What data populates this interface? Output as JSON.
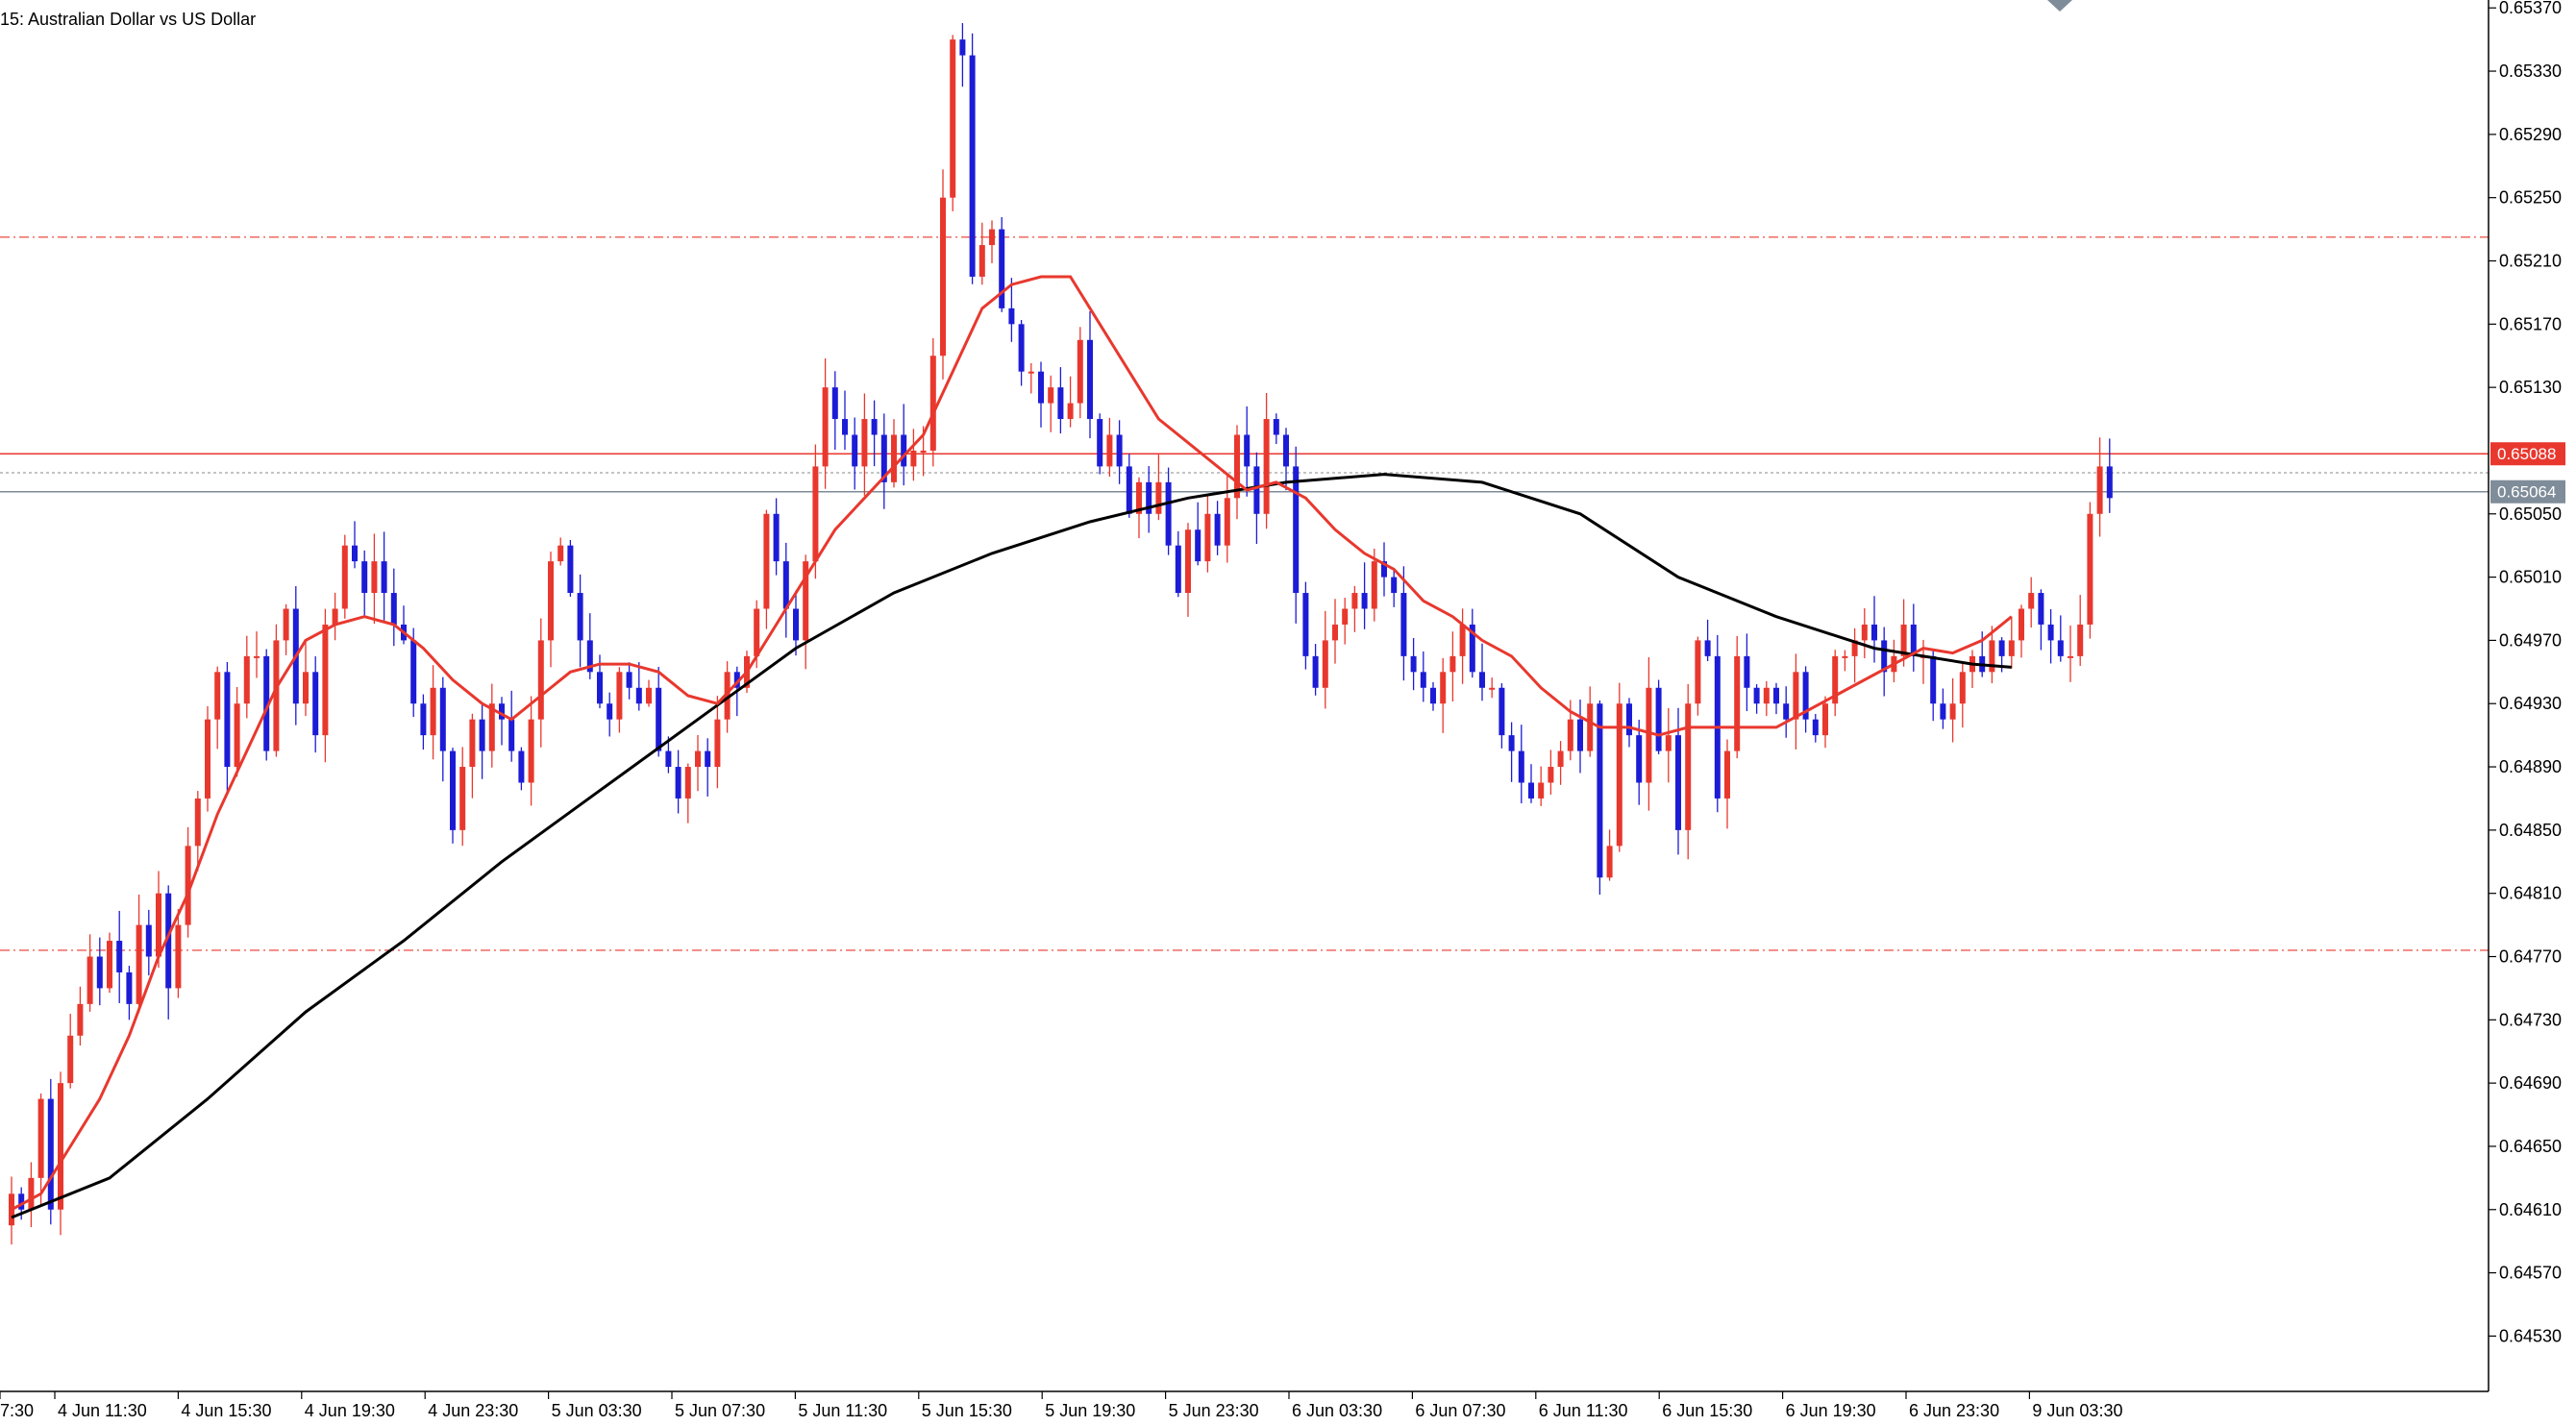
{
  "chart_data": {
    "type": "candlestick",
    "title": "15:  Australian Dollar vs US Dollar",
    "ylim": [
      0.64495,
      0.65375
    ],
    "y_ticks": [
      "0.65370",
      "0.65330",
      "0.65290",
      "0.65250",
      "0.65210",
      "0.65170",
      "0.65130",
      "0.65050",
      "0.65010",
      "0.64970",
      "0.64930",
      "0.64890",
      "0.64850",
      "0.64810",
      "0.64770",
      "0.64730",
      "0.64690",
      "0.64650",
      "0.64610",
      "0.64570",
      "0.64530"
    ],
    "x_ticks": [
      "7:30",
      "4 Jun 11:30",
      "4 Jun 15:30",
      "4 Jun 19:30",
      "4 Jun 23:30",
      "5 Jun 03:30",
      "5 Jun 07:30",
      "5 Jun 11:30",
      "5 Jun 15:30",
      "5 Jun 19:30",
      "5 Jun 23:30",
      "6 Jun 03:30",
      "6 Jun 07:30",
      "6 Jun 11:30",
      "6 Jun 15:30",
      "6 Jun 19:30",
      "6 Jun 23:30",
      "9 Jun 03:30"
    ],
    "ask_line": {
      "label": "0.65088",
      "value": 0.65088
    },
    "bid_line": {
      "label": "0.65064",
      "value": 0.65064
    },
    "mid_line": 0.65076,
    "levels": [
      0.65225,
      0.64774
    ],
    "closes": [
      0.6462,
      0.6461,
      0.6463,
      0.6468,
      0.6461,
      0.6469,
      0.6472,
      0.6474,
      0.6477,
      0.6475,
      0.6478,
      0.6476,
      0.6474,
      0.6479,
      0.6477,
      0.6481,
      0.6475,
      0.6479,
      0.6484,
      0.6487,
      0.6492,
      0.6495,
      0.6489,
      0.6493,
      0.6496,
      0.6496,
      0.649,
      0.6497,
      0.6499,
      0.6493,
      0.6495,
      0.6491,
      0.6498,
      0.6499,
      0.6503,
      0.6502,
      0.65,
      0.6502,
      0.65,
      0.6498,
      0.6497,
      0.6493,
      0.6491,
      0.6494,
      0.649,
      0.6485,
      0.6489,
      0.6492,
      0.649,
      0.6493,
      0.6492,
      0.649,
      0.6488,
      0.6492,
      0.6497,
      0.6502,
      0.6503,
      0.65,
      0.6497,
      0.6495,
      0.6493,
      0.6492,
      0.6495,
      0.6494,
      0.6493,
      0.6494,
      0.649,
      0.6489,
      0.6487,
      0.6489,
      0.649,
      0.6489,
      0.6492,
      0.6495,
      0.6494,
      0.6496,
      0.6499,
      0.6505,
      0.6502,
      0.6499,
      0.6497,
      0.6502,
      0.6508,
      0.6513,
      0.6511,
      0.651,
      0.6508,
      0.6511,
      0.651,
      0.6507,
      0.651,
      0.6508,
      0.6509,
      0.6509,
      0.6515,
      0.6525,
      0.6535,
      0.6534,
      0.652,
      0.6522,
      0.6523,
      0.6518,
      0.6517,
      0.6514,
      0.6514,
      0.6512,
      0.6513,
      0.6511,
      0.6512,
      0.6516,
      0.6511,
      0.6508,
      0.651,
      0.6508,
      0.6505,
      0.6507,
      0.6505,
      0.6507,
      0.6503,
      0.65,
      0.6504,
      0.6502,
      0.6505,
      0.6503,
      0.6506,
      0.651,
      0.6508,
      0.6505,
      0.6511,
      0.651,
      0.6508,
      0.65,
      0.6496,
      0.6494,
      0.6497,
      0.6498,
      0.6499,
      0.65,
      0.6499,
      0.6502,
      0.6501,
      0.65,
      0.6496,
      0.6495,
      0.6494,
      0.6493,
      0.6495,
      0.6496,
      0.6498,
      0.6495,
      0.6494,
      0.6494,
      0.6491,
      0.649,
      0.6488,
      0.6487,
      0.6488,
      0.6489,
      0.649,
      0.6492,
      0.649,
      0.6493,
      0.6482,
      0.6484,
      0.6493,
      0.6491,
      0.6488,
      0.6494,
      0.649,
      0.6491,
      0.6485,
      0.6493,
      0.6497,
      0.6496,
      0.6487,
      0.649,
      0.6496,
      0.6494,
      0.6493,
      0.6494,
      0.6493,
      0.6492,
      0.6495,
      0.6492,
      0.6491,
      0.6493,
      0.6496,
      0.6496,
      0.6497,
      0.6498,
      0.6497,
      0.6495,
      0.6496,
      0.6498,
      0.6496,
      0.6496,
      0.6493,
      0.6492,
      0.6493,
      0.6495,
      0.6496,
      0.6495,
      0.6497,
      0.6496,
      0.6497,
      0.6499,
      0.65,
      0.6498,
      0.6497,
      0.6496,
      0.6496,
      0.6498,
      0.6505,
      0.6508,
      0.6506
    ],
    "ma_fast": [
      [
        0,
        0.6461
      ],
      [
        3,
        0.6462
      ],
      [
        6,
        0.6465
      ],
      [
        9,
        0.6468
      ],
      [
        12,
        0.6472
      ],
      [
        15,
        0.6477
      ],
      [
        18,
        0.6481
      ],
      [
        21,
        0.6486
      ],
      [
        24,
        0.649
      ],
      [
        27,
        0.6494
      ],
      [
        30,
        0.6497
      ],
      [
        33,
        0.6498
      ],
      [
        36,
        0.64985
      ],
      [
        39,
        0.6498
      ],
      [
        42,
        0.64965
      ],
      [
        45,
        0.64945
      ],
      [
        48,
        0.6493
      ],
      [
        51,
        0.6492
      ],
      [
        54,
        0.64935
      ],
      [
        57,
        0.6495
      ],
      [
        60,
        0.64955
      ],
      [
        63,
        0.64955
      ],
      [
        66,
        0.6495
      ],
      [
        69,
        0.64935
      ],
      [
        72,
        0.6493
      ],
      [
        75,
        0.6495
      ],
      [
        78,
        0.6498
      ],
      [
        81,
        0.6501
      ],
      [
        84,
        0.6504
      ],
      [
        87,
        0.6506
      ],
      [
        90,
        0.6508
      ],
      [
        93,
        0.651
      ],
      [
        96,
        0.6514
      ],
      [
        99,
        0.6518
      ],
      [
        102,
        0.65195
      ],
      [
        105,
        0.652
      ],
      [
        108,
        0.652
      ],
      [
        111,
        0.6517
      ],
      [
        114,
        0.6514
      ],
      [
        117,
        0.6511
      ],
      [
        120,
        0.65095
      ],
      [
        123,
        0.6508
      ],
      [
        126,
        0.65065
      ],
      [
        129,
        0.6507
      ],
      [
        132,
        0.6506
      ],
      [
        135,
        0.6504
      ],
      [
        138,
        0.65025
      ],
      [
        141,
        0.65015
      ],
      [
        144,
        0.64995
      ],
      [
        147,
        0.64985
      ],
      [
        150,
        0.6497
      ],
      [
        153,
        0.6496
      ],
      [
        156,
        0.6494
      ],
      [
        159,
        0.64925
      ],
      [
        162,
        0.64915
      ],
      [
        165,
        0.64915
      ],
      [
        168,
        0.6491
      ],
      [
        171,
        0.64915
      ],
      [
        174,
        0.64915
      ],
      [
        177,
        0.64915
      ],
      [
        180,
        0.64915
      ],
      [
        183,
        0.64925
      ],
      [
        186,
        0.64935
      ],
      [
        189,
        0.64945
      ],
      [
        192,
        0.64955
      ],
      [
        195,
        0.64965
      ],
      [
        198,
        0.64962
      ],
      [
        201,
        0.6497
      ],
      [
        204,
        0.64985
      ]
    ],
    "ma_slow": [
      [
        0,
        0.64605
      ],
      [
        10,
        0.6463
      ],
      [
        20,
        0.6468
      ],
      [
        30,
        0.64735
      ],
      [
        40,
        0.6478
      ],
      [
        50,
        0.6483
      ],
      [
        60,
        0.64875
      ],
      [
        70,
        0.6492
      ],
      [
        80,
        0.64965
      ],
      [
        90,
        0.65
      ],
      [
        100,
        0.65025
      ],
      [
        110,
        0.65045
      ],
      [
        120,
        0.6506
      ],
      [
        130,
        0.6507
      ],
      [
        140,
        0.65075
      ],
      [
        150,
        0.6507
      ],
      [
        160,
        0.6505
      ],
      [
        170,
        0.6501
      ],
      [
        180,
        0.64985
      ],
      [
        190,
        0.64965
      ],
      [
        200,
        0.64955
      ],
      [
        204,
        0.64953
      ]
    ]
  },
  "colors": {
    "bull": "#e8382e",
    "bear": "#1c1cd6",
    "ma_fast": "#e8382e",
    "ma_slow": "#000000",
    "ask_badge": "#e8382e",
    "bid_badge": "#7f8c99"
  }
}
